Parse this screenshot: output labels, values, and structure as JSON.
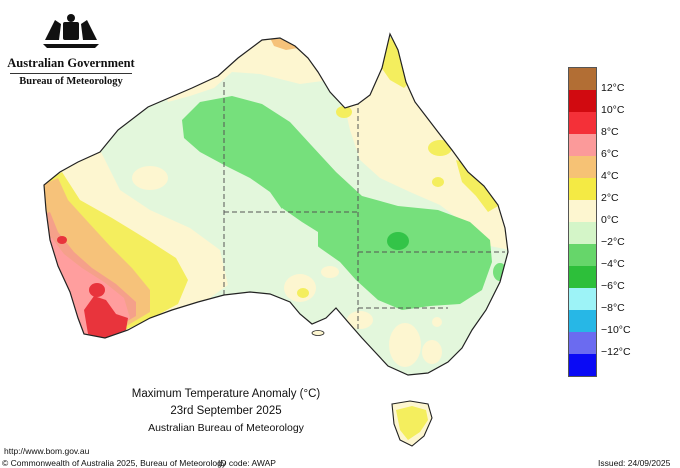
{
  "branding": {
    "government": "Australian Government",
    "bureau": "Bureau of Meteorology",
    "crest_icon": "commonwealth-coat-of-arms"
  },
  "map": {
    "title": "Maximum Temperature Anomaly (°C)",
    "date": "23rd September 2025",
    "agency": "Australian Bureau of Meteorology",
    "land_color": "#e3f7dc",
    "anomaly_colors": {
      "plus_8_to_10": "#ff9e9e",
      "plus_6_to_8": "#f7a48a",
      "plus_4_to_6": "#f6c27a",
      "plus_2_to_4": "#f4ee5e",
      "zero_to_plus_2": "#fdf6d0",
      "minus_2_to_zero": "#e3f7dc",
      "minus_4_to_minus_2": "#76e07c",
      "below_minus_4": "#33c448",
      "plus_10_to_12": "#e8343c"
    }
  },
  "legend": {
    "labels": [
      "12°C",
      "10°C",
      "8°C",
      "6°C",
      "4°C",
      "2°C",
      "0°C",
      "−2°C",
      "−4°C",
      "−6°C",
      "−8°C",
      "−10°C",
      "−12°C"
    ],
    "colors": [
      "#b26e34",
      "#d10a10",
      "#f43038",
      "#fb9a9a",
      "#f6c275",
      "#f4ea44",
      "#fdf6d0",
      "#d4f5c8",
      "#66d66a",
      "#2dbf3a",
      "#9df3f7",
      "#27b7e6",
      "#6b6bf0",
      "#0a0af5"
    ]
  },
  "footer": {
    "url": "http://www.bom.gov.au",
    "copyright": "© Commonwealth of Australia 2025, Bureau of Meteorology",
    "id_code": "ID code: AWAP",
    "issued": "Issued: 24/09/2025"
  }
}
